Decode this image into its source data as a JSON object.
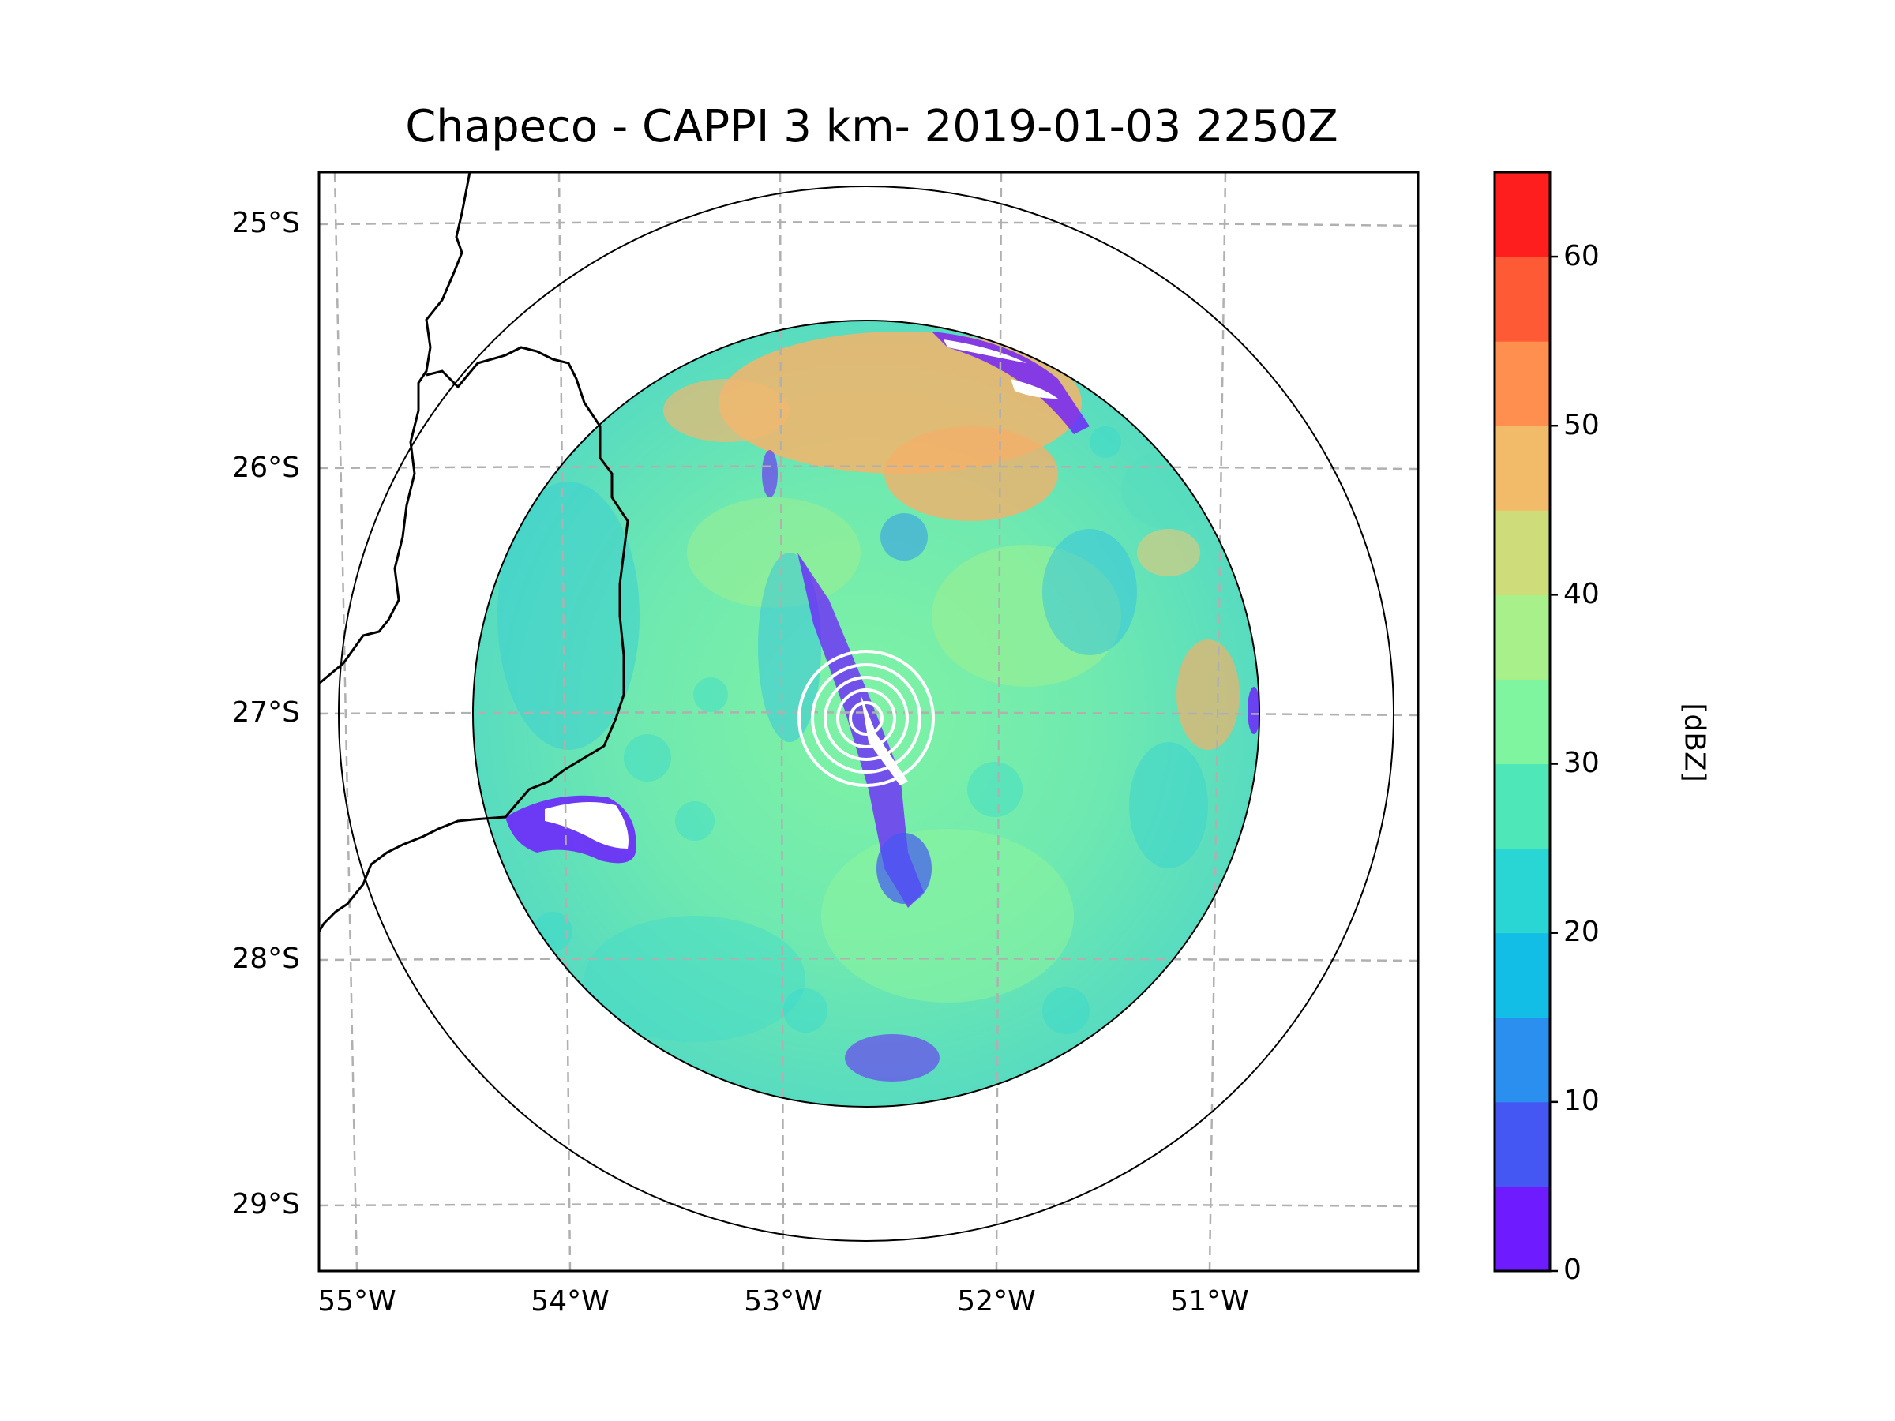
{
  "title": "Chapeco - CAPPI 3 km- 2019-01-03 2250Z",
  "map": {
    "lat_labels": [
      "25°S",
      "26°S",
      "27°S",
      "28°S",
      "29°S"
    ],
    "lon_labels": [
      "55°W",
      "54°W",
      "53°W",
      "52°W",
      "51°W"
    ],
    "gridline_color": "#b0b0b0",
    "range_ring_color": "#000000",
    "center_rings_color": "#ffffff"
  },
  "colorbar": {
    "unit": "[dBZ]",
    "tick_labels": [
      "0",
      "10",
      "20",
      "30",
      "40",
      "50",
      "60"
    ],
    "levels": [
      0,
      5,
      10,
      15,
      20,
      25,
      30,
      35,
      40,
      45,
      50,
      55,
      60,
      65
    ],
    "colors": [
      "#6e1cff",
      "#4457f2",
      "#2b8ff0",
      "#12bde6",
      "#2ad6d3",
      "#4ee8b8",
      "#80f5a0",
      "#a8f08a",
      "#cfdc7a",
      "#f2bb6a",
      "#ff8f4e",
      "#ff5a36",
      "#ff1e1e"
    ]
  }
}
